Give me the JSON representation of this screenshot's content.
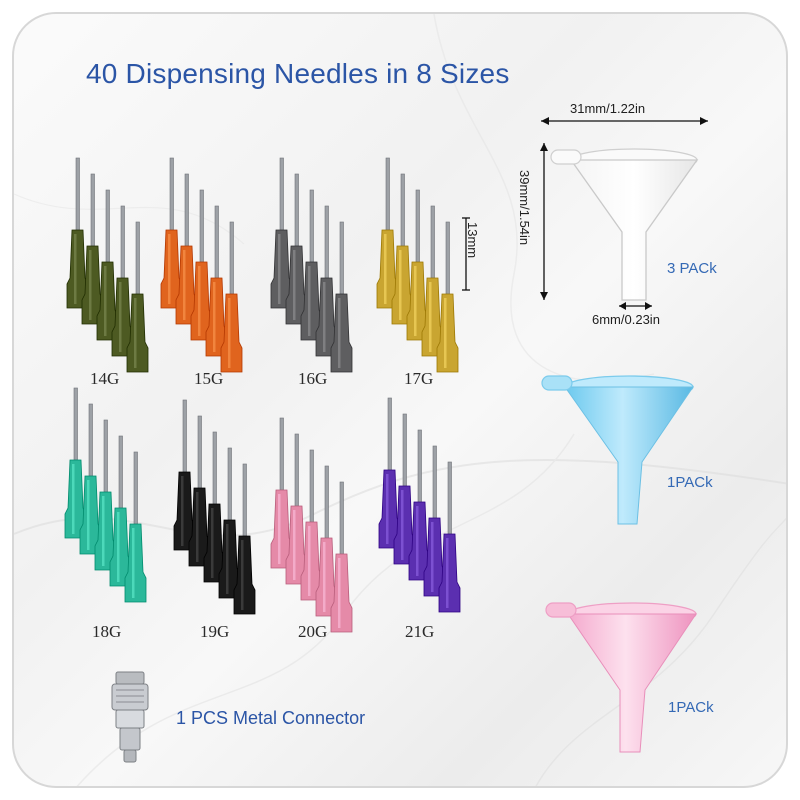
{
  "title": "40 Dispensing Needles in 8 Sizes",
  "needle_groups": [
    {
      "gauge": "14G",
      "color": "#4d5a22"
    },
    {
      "gauge": "15G",
      "color": "#e0641e"
    },
    {
      "gauge": "16G",
      "color": "#5e5e60"
    },
    {
      "gauge": "17G",
      "color": "#c9a531"
    },
    {
      "gauge": "18G",
      "color": "#2bb89a"
    },
    {
      "gauge": "19G",
      "color": "#1a1a1a"
    },
    {
      "gauge": "20G",
      "color": "#e58aa8"
    },
    {
      "gauge": "21G",
      "color": "#5b2fb0"
    }
  ],
  "dimensions": {
    "hub_length": "13mm",
    "funnel_width": "31mm/1.22in",
    "funnel_height": "39mm/1.54in",
    "funnel_spout": "6mm/0.23in"
  },
  "funnels": [
    {
      "color": "clear",
      "pack": "3 PACk"
    },
    {
      "color": "blue",
      "pack": "1PACk"
    },
    {
      "color": "pink",
      "pack": "1PACk"
    }
  ],
  "connector": {
    "label": "1 PCS Metal Connector"
  }
}
